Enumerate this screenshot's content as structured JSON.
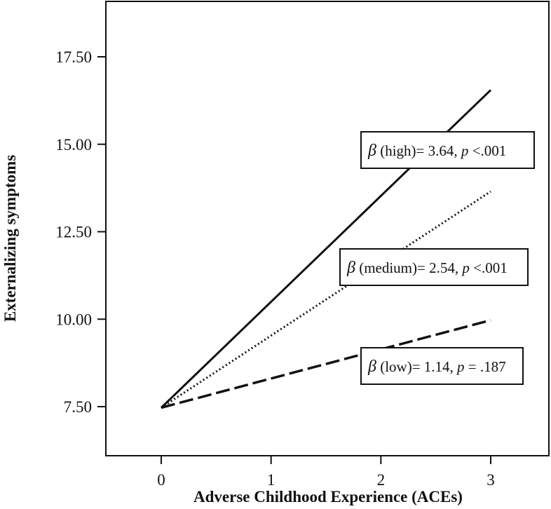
{
  "chart_data": {
    "type": "line",
    "title": "",
    "xlabel": "Adverse Childhood Experience (ACEs)",
    "ylabel": "Externalizing symptoms",
    "xlim": [
      -0.5,
      3.5
    ],
    "ylim": [
      6.5,
      18.5
    ],
    "x_ticks": [
      0,
      1,
      2,
      3
    ],
    "x_tick_labels": [
      "0",
      "1",
      "2",
      "3"
    ],
    "y_ticks": [
      7.5,
      10.0,
      12.5,
      15.0,
      17.5
    ],
    "y_tick_labels": [
      "7.50",
      "10.00",
      "12.50",
      "15.00",
      "17.50"
    ],
    "grid": false,
    "legend": "none",
    "series": [
      {
        "key": "high",
        "style": "solid",
        "x": [
          0,
          3
        ],
        "y": [
          7.47,
          16.55
        ]
      },
      {
        "key": "medium",
        "style": "dotted",
        "x": [
          0,
          3
        ],
        "y": [
          7.47,
          13.65
        ]
      },
      {
        "key": "low",
        "style": "dashed",
        "x": [
          0,
          3
        ],
        "y": [
          7.47,
          9.97
        ]
      }
    ],
    "annotations": [
      {
        "key": "high",
        "greek": "β",
        "label": " (high)= 3.64, ",
        "p": "p",
        "pval": " <.001"
      },
      {
        "key": "medium",
        "greek": "β",
        "label": " (medium)= 2.54, ",
        "p": "p",
        "pval": " <.001"
      },
      {
        "key": "low",
        "greek": "β",
        "label": " (low)= 1.14, ",
        "p": "p",
        "pval": " = .187"
      }
    ]
  }
}
